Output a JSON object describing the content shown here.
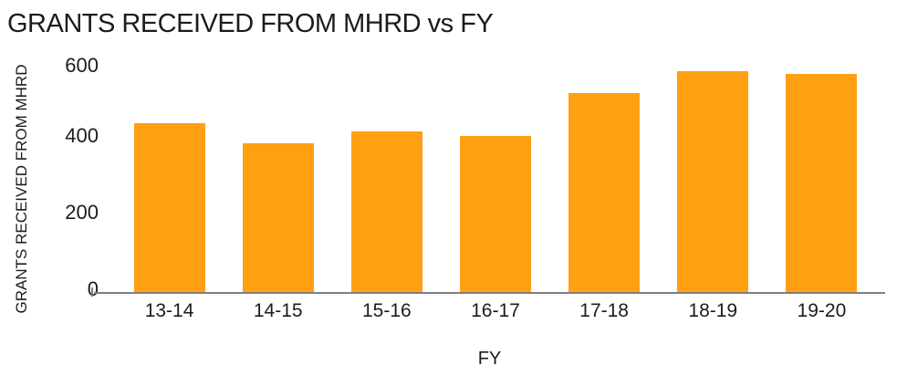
{
  "chart_data": {
    "type": "bar",
    "title": "GRANTS RECEIVED FROM MHRD vs FY",
    "categories": [
      "13-14",
      "14-15",
      "15-16",
      "16-17",
      "17-18",
      "18-19",
      "19-20"
    ],
    "values": [
      444,
      390,
      421,
      409,
      522,
      578,
      572
    ],
    "xlabel": "FY",
    "ylabel": "GRANTS RECEIVED FROM MHRD",
    "ylim": [
      0,
      600
    ],
    "yticks": [
      0,
      200,
      400,
      600
    ],
    "grid": false,
    "legend": "none",
    "colors": {
      "bar": "#FFA013",
      "axis_line": "#7F7F7F",
      "text": "#1C1C1C",
      "background": "#FFFFFF"
    }
  }
}
